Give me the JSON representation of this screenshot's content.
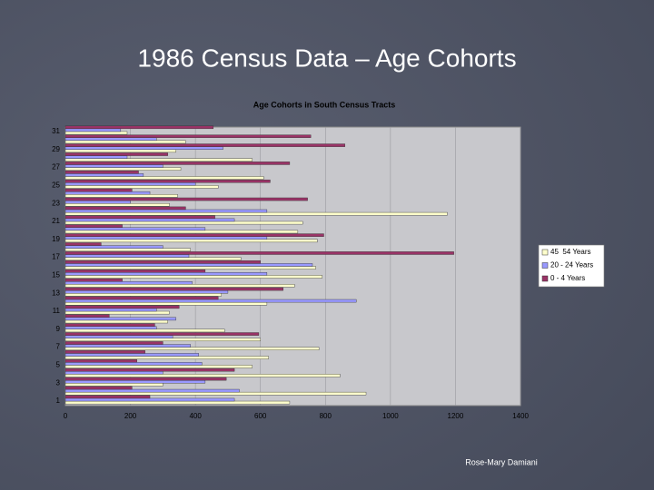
{
  "slide": {
    "title": "1986 Census Data – Age Cohorts",
    "footer": "Rose-Mary Damiani"
  },
  "chart_data": {
    "type": "bar",
    "orientation": "horizontal",
    "title": "Age Cohorts in South Census Tracts",
    "categories": [
      "1",
      null,
      "3",
      null,
      "5",
      null,
      "7",
      null,
      "9",
      null,
      "11",
      null,
      "13",
      null,
      "15",
      null,
      "17",
      null,
      "19",
      null,
      "21",
      null,
      "23",
      null,
      "25",
      null,
      "27",
      null,
      "29",
      null,
      "31"
    ],
    "series": [
      {
        "name": "45  54 Years",
        "color": "#ffffcc",
        "values": [
          690,
          925,
          300,
          845,
          575,
          625,
          780,
          600,
          490,
          315,
          320,
          620,
          480,
          705,
          790,
          770,
          540,
          385,
          775,
          715,
          730,
          1175,
          320,
          345,
          470,
          610,
          355,
          575,
          340,
          370,
          190
        ]
      },
      {
        "name": "20 - 24 Years",
        "color": "#9999ff",
        "values": [
          520,
          535,
          430,
          300,
          420,
          410,
          385,
          330,
          280,
          340,
          280,
          895,
          500,
          390,
          620,
          760,
          380,
          300,
          620,
          430,
          520,
          620,
          200,
          260,
          400,
          240,
          300,
          190,
          485,
          280,
          170
        ]
      },
      {
        "name": "0 - 4 Years",
        "color": "#993366",
        "values": [
          260,
          205,
          495,
          520,
          220,
          245,
          300,
          595,
          275,
          135,
          350,
          470,
          670,
          175,
          430,
          600,
          1195,
          110,
          795,
          175,
          460,
          370,
          745,
          205,
          630,
          225,
          690,
          315,
          860,
          755,
          455
        ]
      }
    ],
    "xlim": [
      0,
      1400
    ],
    "xticks": [
      0,
      200,
      400,
      600,
      800,
      1000,
      1200,
      1400
    ],
    "grid": true,
    "legend": "right"
  }
}
